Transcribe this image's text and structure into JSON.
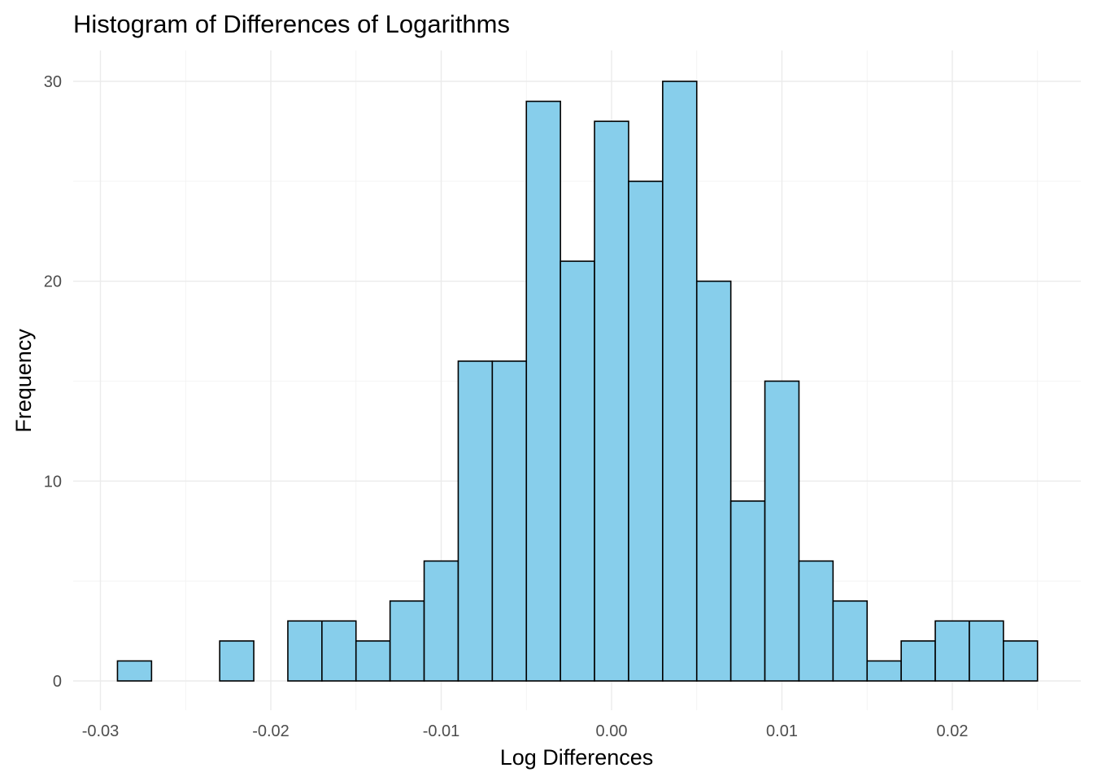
{
  "chart_data": {
    "type": "bar",
    "title": "Histogram of Differences of Logarithms",
    "xlabel": "Log Differences",
    "ylabel": "Frequency",
    "bar_color": "#87CEEB",
    "bar_outline": "#000000",
    "bin_width": 0.002,
    "bins": [
      {
        "center": -0.028,
        "count": 1
      },
      {
        "center": -0.026,
        "count": 0
      },
      {
        "center": -0.024,
        "count": 0
      },
      {
        "center": -0.022,
        "count": 2
      },
      {
        "center": -0.02,
        "count": 0
      },
      {
        "center": -0.018,
        "count": 3
      },
      {
        "center": -0.016,
        "count": 3
      },
      {
        "center": -0.014,
        "count": 2
      },
      {
        "center": -0.012,
        "count": 4
      },
      {
        "center": -0.01,
        "count": 6
      },
      {
        "center": -0.008,
        "count": 16
      },
      {
        "center": -0.006,
        "count": 16
      },
      {
        "center": -0.004,
        "count": 29
      },
      {
        "center": -0.002,
        "count": 21
      },
      {
        "center": 0.0,
        "count": 28
      },
      {
        "center": 0.002,
        "count": 25
      },
      {
        "center": 0.004,
        "count": 30
      },
      {
        "center": 0.006,
        "count": 20
      },
      {
        "center": 0.008,
        "count": 9
      },
      {
        "center": 0.01,
        "count": 15
      },
      {
        "center": 0.012,
        "count": 6
      },
      {
        "center": 0.014,
        "count": 4
      },
      {
        "center": 0.016,
        "count": 1
      },
      {
        "center": 0.018,
        "count": 2
      },
      {
        "center": 0.02,
        "count": 3
      },
      {
        "center": 0.022,
        "count": 3
      },
      {
        "center": 0.024,
        "count": 2
      }
    ],
    "x_ticks": [
      {
        "value": -0.03,
        "label": "-0.03"
      },
      {
        "value": -0.02,
        "label": "-0.02"
      },
      {
        "value": -0.01,
        "label": "-0.01"
      },
      {
        "value": 0.0,
        "label": "0.00"
      },
      {
        "value": 0.01,
        "label": "0.01"
      },
      {
        "value": 0.02,
        "label": "0.02"
      }
    ],
    "y_ticks": [
      {
        "value": 0,
        "label": "0"
      },
      {
        "value": 10,
        "label": "10"
      },
      {
        "value": 20,
        "label": "20"
      },
      {
        "value": 30,
        "label": "30"
      }
    ],
    "xlim": [
      -0.03,
      0.025
    ],
    "ylim": [
      0,
      30
    ],
    "grid": true
  }
}
